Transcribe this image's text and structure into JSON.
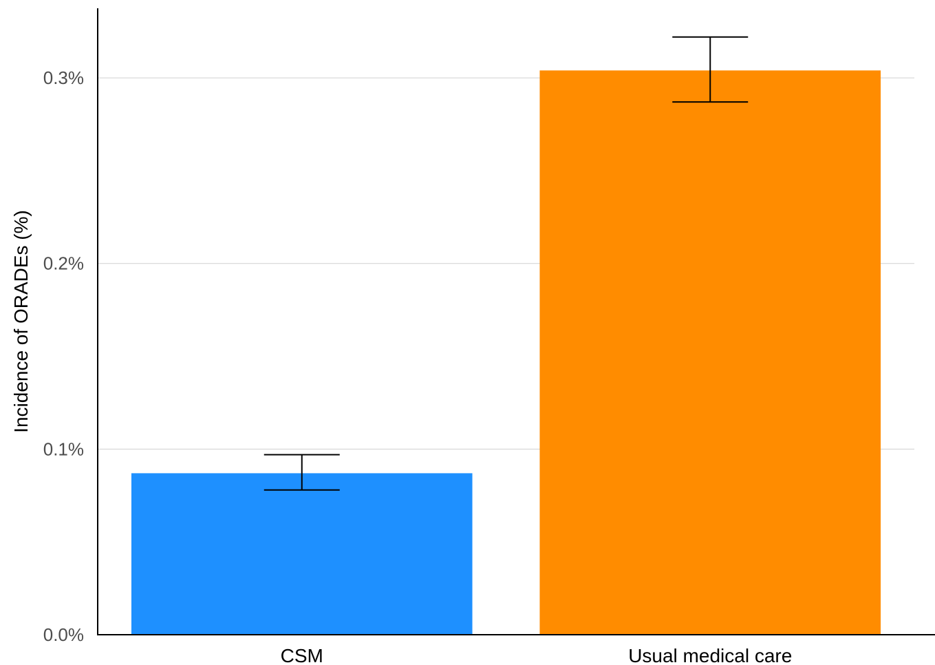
{
  "chart_data": {
    "type": "bar",
    "title": "",
    "xlabel": "",
    "ylabel": "Incidence of ORADEs (%)",
    "categories": [
      "CSM",
      "Usual medical care"
    ],
    "values": [
      0.087,
      0.304
    ],
    "error_low": [
      0.078,
      0.287
    ],
    "error_high": [
      0.097,
      0.322
    ],
    "colors": [
      "#1e90ff",
      "#ff8c00"
    ],
    "ylim": [
      0,
      0.3375
    ],
    "yticks": [
      0,
      0.1,
      0.2,
      0.3
    ],
    "ytick_labels": [
      "0.0%",
      "0.1%",
      "0.2%",
      "0.3%"
    ],
    "grid": true,
    "legend": "none"
  }
}
